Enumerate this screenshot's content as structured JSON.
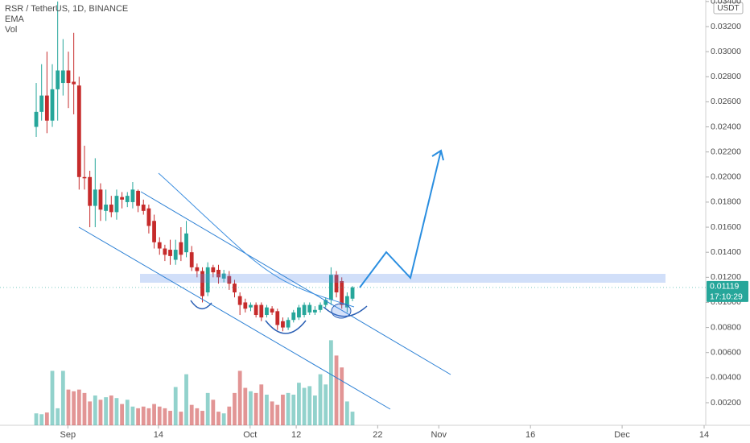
{
  "chart_data": {
    "type": "candlestick",
    "title": "RSR / TetherUS, 1D, BINANCE",
    "indicators": [
      "EMA",
      "Vol"
    ],
    "currency": "USDT",
    "last_price": {
      "value": 0.01119,
      "label": "0.01119"
    },
    "countdown": "17:10:29",
    "up_color": "#26a69a",
    "down_color": "#c62b2b",
    "categories": [
      null,
      null,
      null,
      null,
      null,
      null,
      null,
      null,
      null,
      null,
      null,
      null,
      null,
      null,
      null,
      null,
      null,
      null,
      null,
      null,
      null,
      null,
      null,
      null,
      null,
      null,
      null,
      null,
      null,
      null,
      null,
      null,
      null,
      null,
      null,
      null,
      null,
      null,
      null,
      null,
      null,
      null,
      null,
      null,
      null,
      null,
      null,
      null,
      null,
      null,
      null,
      null,
      null,
      null,
      null,
      null,
      null,
      null,
      null,
      null
    ],
    "open": [
      0.024,
      0.0252,
      0.0265,
      0.0245,
      0.027,
      0.0275,
      0.0285,
      0.0276,
      0.0273,
      0.02,
      0.02,
      0.0177,
      0.019,
      0.0173,
      0.0178,
      0.0172,
      0.0184,
      0.018,
      0.018,
      0.0189,
      0.0178,
      0.0175,
      0.0165,
      0.0148,
      0.0143,
      0.0142,
      0.0134,
      0.0148,
      0.014,
      0.014,
      0.0128,
      0.0125,
      0.0108,
      0.0128,
      0.0126,
      0.0119,
      0.0121,
      0.0115,
      0.0105,
      0.01,
      0.0096,
      0.0098,
      0.0098,
      0.009,
      0.0095,
      0.0093,
      0.0085,
      0.008,
      0.0086,
      0.0088,
      0.009,
      0.0092,
      0.0092,
      0.0094,
      0.0098,
      0.0102,
      0.0122,
      0.0117,
      0.0096,
      0.0103
    ],
    "high": [
      0.0275,
      0.029,
      0.03,
      0.029,
      0.034,
      0.031,
      0.03,
      0.0315,
      0.028,
      0.0225,
      0.0205,
      0.0215,
      0.0195,
      0.019,
      0.0185,
      0.019,
      0.0188,
      0.0188,
      0.0196,
      0.019,
      0.0182,
      0.0178,
      0.017,
      0.0152,
      0.0146,
      0.015,
      0.015,
      0.016,
      0.0165,
      0.0145,
      0.0131,
      0.0128,
      0.0132,
      0.013,
      0.013,
      0.0126,
      0.0125,
      0.0118,
      0.0108,
      0.0103,
      0.01,
      0.01,
      0.01,
      0.0098,
      0.0097,
      0.0095,
      0.0088,
      0.0088,
      0.0094,
      0.0098,
      0.01,
      0.01,
      0.0097,
      0.01,
      0.0104,
      0.0128,
      0.0125,
      0.012,
      0.0108,
      0.0113
    ],
    "low": [
      0.0232,
      0.0245,
      0.0235,
      0.024,
      0.0245,
      0.0265,
      0.0255,
      0.025,
      0.019,
      0.019,
      0.016,
      0.016,
      0.0165,
      0.0165,
      0.0168,
      0.0166,
      0.0175,
      0.0176,
      0.0175,
      0.0172,
      0.017,
      0.0155,
      0.0143,
      0.0138,
      0.0133,
      0.013,
      0.013,
      0.0133,
      0.0136,
      0.0125,
      0.012,
      0.01,
      0.0105,
      0.012,
      0.0115,
      0.0116,
      0.011,
      0.0104,
      0.009,
      0.0092,
      0.0093,
      0.0088,
      0.0085,
      0.0088,
      0.009,
      0.0078,
      0.0077,
      0.0078,
      0.0084,
      0.0086,
      0.0088,
      0.009,
      0.009,
      0.0092,
      0.0096,
      0.0098,
      0.0104,
      0.0095,
      0.0092,
      0.0101
    ],
    "close": [
      0.0252,
      0.0265,
      0.0245,
      0.027,
      0.0285,
      0.0285,
      0.0275,
      0.0274,
      0.02,
      0.0199,
      0.0177,
      0.019,
      0.0174,
      0.0178,
      0.0172,
      0.0185,
      0.0182,
      0.0185,
      0.019,
      0.0177,
      0.0173,
      0.0161,
      0.0148,
      0.0143,
      0.0138,
      0.0137,
      0.0142,
      0.0138,
      0.0155,
      0.0128,
      0.0125,
      0.0105,
      0.0128,
      0.0124,
      0.012,
      0.0123,
      0.0115,
      0.0108,
      0.0098,
      0.0095,
      0.0098,
      0.009,
      0.0088,
      0.0096,
      0.0092,
      0.0082,
      0.008,
      0.0086,
      0.0092,
      0.0096,
      0.0098,
      0.0098,
      0.0094,
      0.0098,
      0.0102,
      0.0122,
      0.0108,
      0.0098,
      0.0105,
      0.0112
    ],
    "volume": [
      14,
      13,
      15,
      64,
      20,
      64,
      42,
      40,
      42,
      38,
      28,
      35,
      30,
      33,
      35,
      32,
      25,
      30,
      22,
      20,
      22,
      20,
      25,
      22,
      20,
      17,
      45,
      16,
      60,
      24,
      20,
      17,
      38,
      30,
      16,
      14,
      22,
      38,
      64,
      44,
      40,
      38,
      48,
      36,
      28,
      24,
      36,
      38,
      36,
      50,
      44,
      46,
      35,
      60,
      48,
      100,
      82,
      68,
      28,
      16
    ],
    "ylim": [
      0.0002,
      0.03412
    ],
    "yticks": [
      {
        "value": 0.002,
        "label": "0.00200"
      },
      {
        "value": 0.004,
        "label": "0.00400"
      },
      {
        "value": 0.006,
        "label": "0.00600"
      },
      {
        "value": 0.008,
        "label": "0.00800"
      },
      {
        "value": 0.01,
        "label": "0.01000"
      },
      {
        "value": 0.012,
        "label": "0.01200"
      },
      {
        "value": 0.014,
        "label": "0.01400"
      },
      {
        "value": 0.016,
        "label": "0.01600"
      },
      {
        "value": 0.018,
        "label": "0.01800"
      },
      {
        "value": 0.02,
        "label": "0.02000"
      },
      {
        "value": 0.022,
        "label": "0.02200"
      },
      {
        "value": 0.024,
        "label": "0.02400"
      },
      {
        "value": 0.026,
        "label": "0.02600"
      },
      {
        "value": 0.028,
        "label": "0.02800"
      },
      {
        "value": 0.03,
        "label": "0.03000"
      },
      {
        "value": 0.032,
        "label": "0.03200"
      },
      {
        "value": 0.034,
        "label": "0.03400"
      }
    ],
    "xlim": [
      -6.76,
      124.9
    ],
    "xticks": [
      {
        "value": 5.9,
        "label": "Sep"
      },
      {
        "value": 22.8,
        "label": "14"
      },
      {
        "value": 39.9,
        "label": "Oct"
      },
      {
        "value": 48.5,
        "label": "12"
      },
      {
        "value": 63.7,
        "label": "22"
      },
      {
        "value": 75.1,
        "label": "Nov"
      },
      {
        "value": 92.2,
        "label": "16"
      },
      {
        "value": 109.3,
        "label": "Dec"
      },
      {
        "value": 124.6,
        "label": "14"
      }
    ]
  }
}
